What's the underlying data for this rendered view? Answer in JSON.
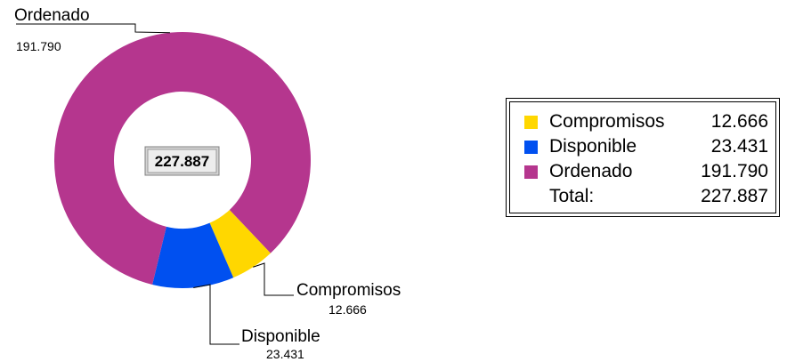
{
  "chart_data": {
    "type": "pie",
    "subtype": "donut",
    "center_label": "227.887",
    "categories": [
      "Compromisos",
      "Disponible",
      "Ordenado"
    ],
    "values": [
      12666,
      23431,
      191790
    ],
    "value_labels": [
      "12.666",
      "23.431",
      "191.790"
    ],
    "colors": [
      "#FFD700",
      "#0050F0",
      "#B5368E"
    ],
    "legend": {
      "position": "right",
      "items": [
        {
          "label": "Compromisos",
          "value": "12.666",
          "color": "#FFD700"
        },
        {
          "label": "Disponible",
          "value": "23.431",
          "color": "#0050F0"
        },
        {
          "label": "Ordenado",
          "value": "191.790",
          "color": "#B5368E"
        }
      ],
      "total_label": "Total:",
      "total_value": "227.887"
    }
  }
}
